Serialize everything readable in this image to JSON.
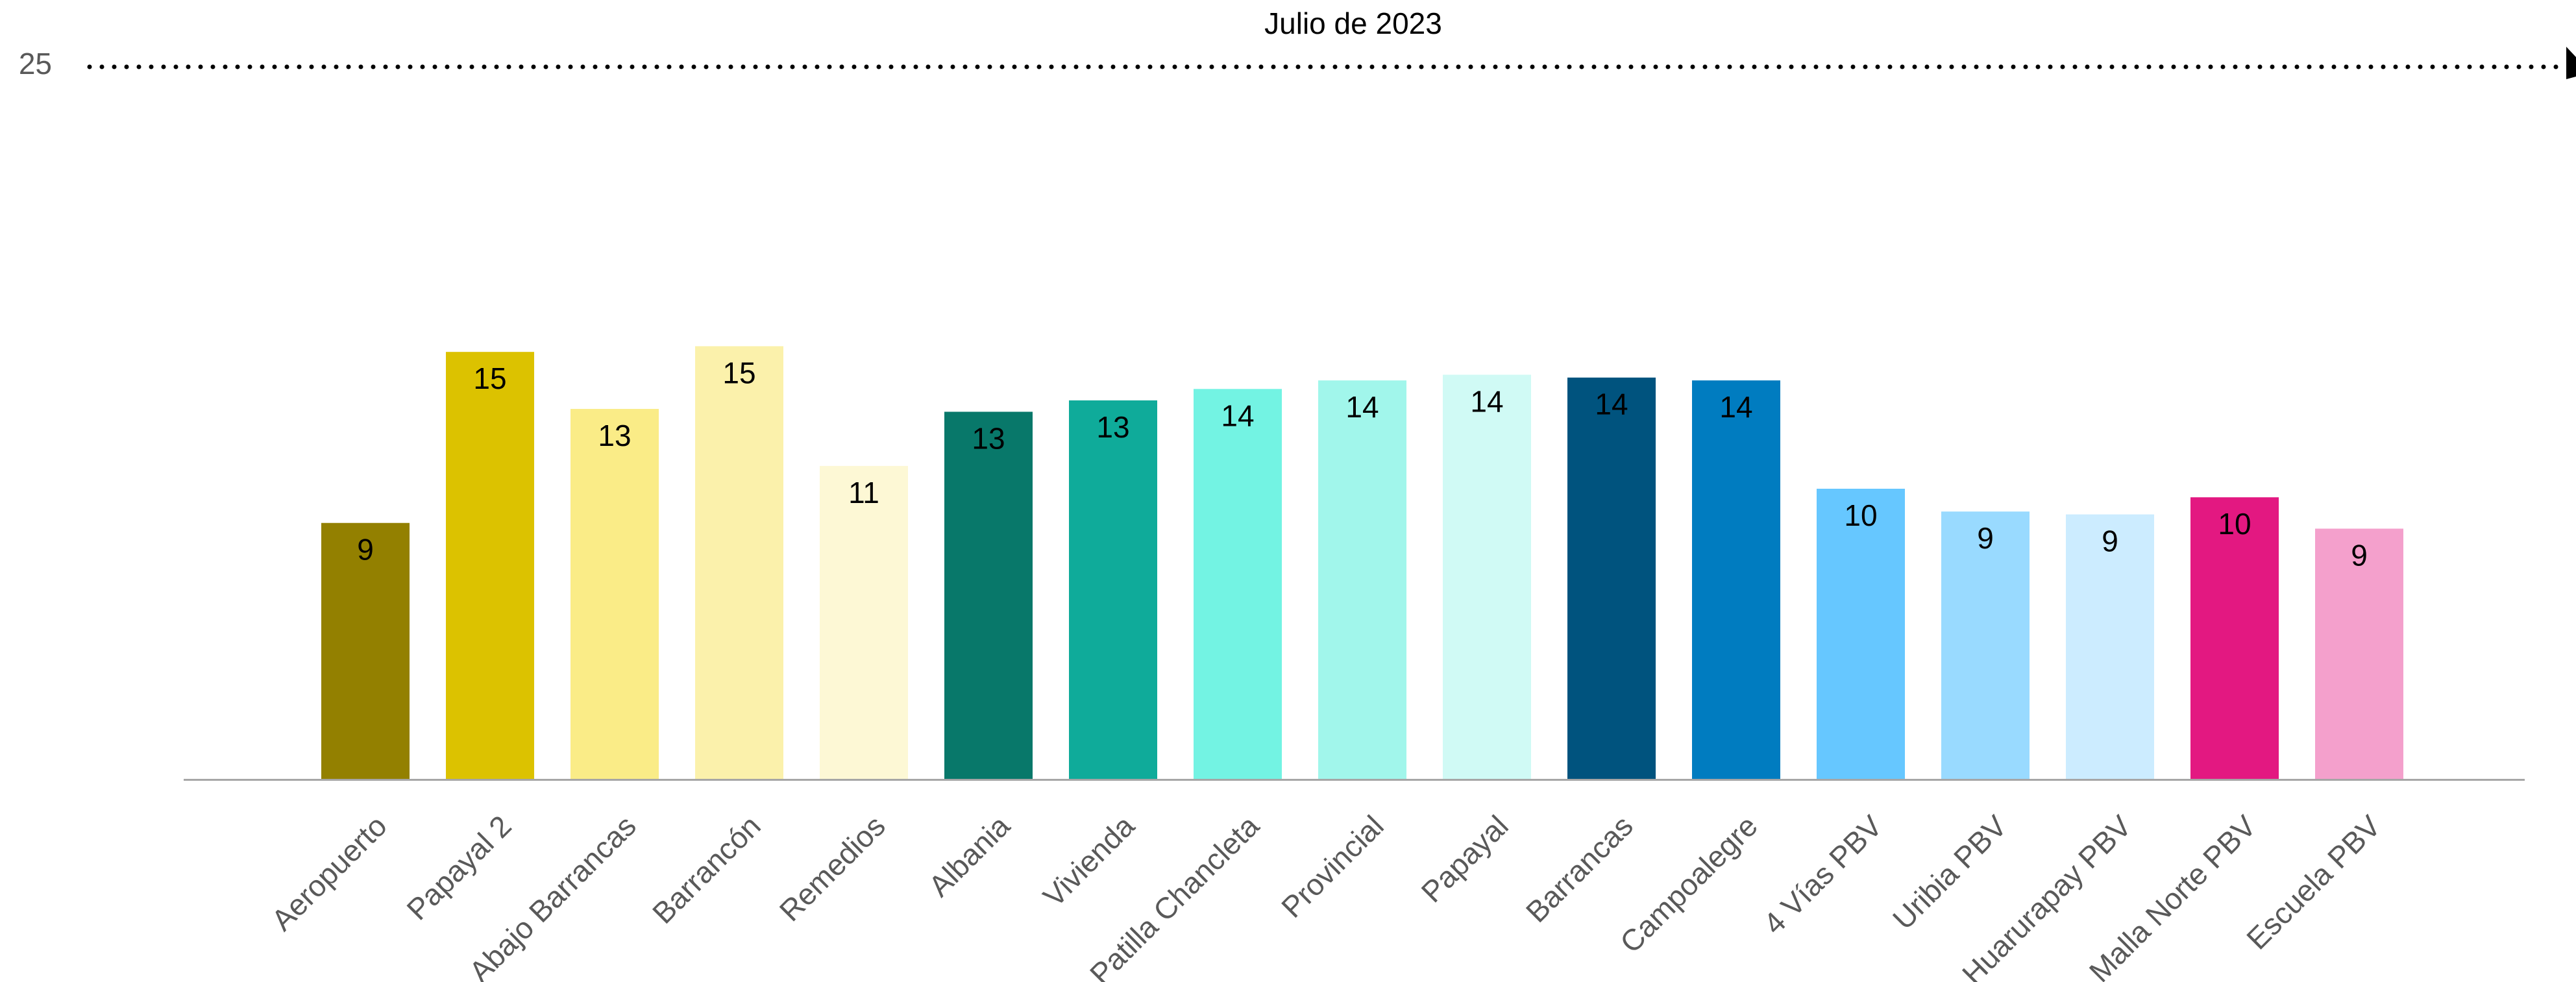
{
  "chart_data": {
    "type": "bar",
    "title": "Julio de 2023",
    "categories": [
      "Aeropuerto",
      "Papayal 2",
      "Abajo Barrancas",
      "Barrancón",
      "Remedios",
      "Albania",
      "Vivienda",
      "Patilla Chancleta",
      "Provincial",
      "Papayal",
      "Barrancas",
      "Campoalegre",
      "4 Vías PBV",
      "Uribia PBV",
      "Huarurapay PBV",
      "Malla Norte PBV",
      "Escuela PBV"
    ],
    "values": [
      9.0,
      15.0,
      13.0,
      15.2,
      11.0,
      12.9,
      13.3,
      13.7,
      14.0,
      14.2,
      14.1,
      14.0,
      10.2,
      9.4,
      9.3,
      9.9,
      8.8
    ],
    "data_labels": [
      "9",
      "15",
      "13",
      "15",
      "11",
      "13",
      "13",
      "14",
      "14",
      "14",
      "14",
      "14",
      "10",
      "9",
      "9",
      "10",
      "9"
    ],
    "colors": [
      "#938000",
      "#DCC200",
      "#FAEC87",
      "#FBF1AB",
      "#FDF8D5",
      "#08786A",
      "#0FAB9A",
      "#73F3E3",
      "#A1F6EB",
      "#D0FAF5",
      "#00537E",
      "#007CC0",
      "#66C7FF",
      "#99DAFF",
      "#CCECFF",
      "#E31881",
      "#F4A0CC"
    ],
    "ytick_labels": [
      "25"
    ],
    "ylim": [
      0,
      25
    ],
    "xlabel": "",
    "ylabel": "",
    "legend": "none",
    "grid": false
  }
}
